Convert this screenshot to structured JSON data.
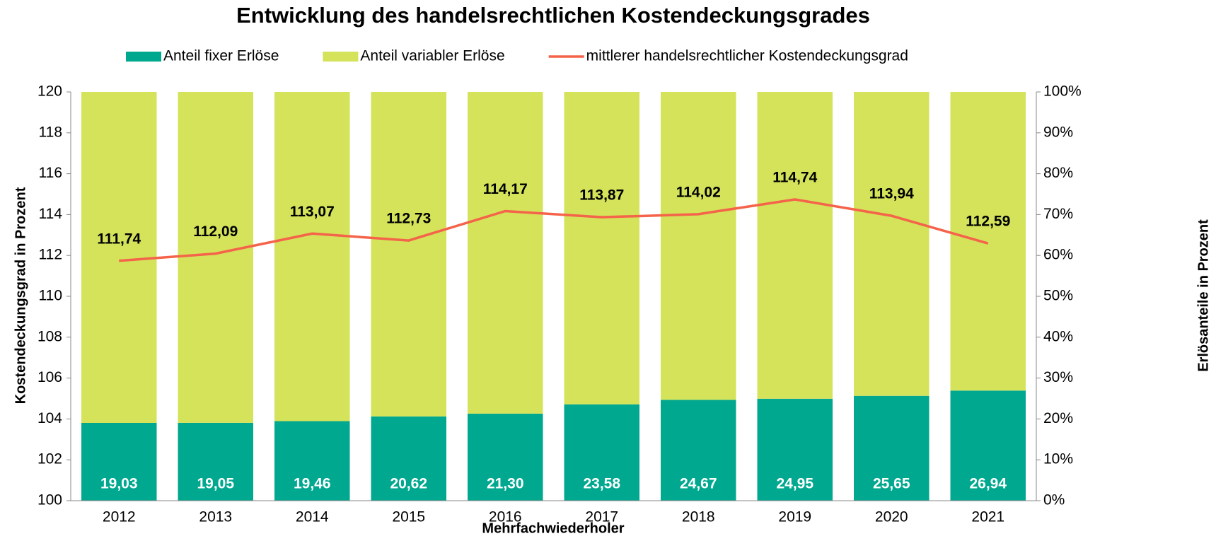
{
  "chart_data": {
    "type": "bar",
    "title": "Entwicklung des handelsrechtlichen Kostendeckungsgrades",
    "xlabel": "Mehrfachwiederholer",
    "ylabel": "Kostendeckungsgrad in Prozent",
    "y2label": "Erlösanteile in Prozent",
    "categories": [
      "2012",
      "2013",
      "2014",
      "2015",
      "2016",
      "2017",
      "2018",
      "2019",
      "2020",
      "2021"
    ],
    "series": [
      {
        "name": "Anteil fixer Erlöse",
        "type": "bar",
        "axis": "y2",
        "color": "#00a88f",
        "values": [
          19.03,
          19.05,
          19.46,
          20.62,
          21.3,
          23.58,
          24.67,
          24.95,
          25.65,
          26.94
        ],
        "value_labels": [
          "19,03",
          "19,05",
          "19,46",
          "20,62",
          "21,30",
          "23,58",
          "24,67",
          "24,95",
          "25,65",
          "26,94"
        ]
      },
      {
        "name": "Anteil variabler Erlöse",
        "type": "bar",
        "axis": "y2",
        "color": "#d4e35a",
        "values": [
          80.97,
          80.95,
          80.54,
          79.38,
          78.7,
          76.42,
          75.33,
          75.05,
          74.35,
          73.06
        ]
      },
      {
        "name": "mittlerer handelsrechtlicher Kostendeckungsgrad",
        "type": "line",
        "color": "#f4634a",
        "values": [
          111.74,
          112.09,
          113.07,
          112.73,
          114.17,
          113.87,
          114.02,
          114.74,
          113.94,
          112.59
        ],
        "value_labels": [
          "111,74",
          "112,09",
          "113,07",
          "112,73",
          "114,17",
          "113,87",
          "114,02",
          "114,74",
          "113,94",
          "112,59"
        ]
      }
    ],
    "ylim": [
      100,
      120
    ],
    "yticks": [
      100,
      102,
      104,
      106,
      108,
      110,
      112,
      114,
      116,
      118,
      120
    ],
    "y2lim": [
      0,
      100
    ],
    "y2ticks": [
      {
        "value": 0,
        "label": "0%"
      },
      {
        "value": 10,
        "label": "10%"
      },
      {
        "value": 20,
        "label": "20%"
      },
      {
        "value": 30,
        "label": "30%"
      },
      {
        "value": 40,
        "label": "40%"
      },
      {
        "value": 50,
        "label": "50%"
      },
      {
        "value": 60,
        "label": "60%"
      },
      {
        "value": 70,
        "label": "70%"
      },
      {
        "value": 80,
        "label": "80%"
      },
      {
        "value": 90,
        "label": "90%"
      },
      {
        "value": 100,
        "label": "100%"
      }
    ],
    "legend": "top"
  }
}
